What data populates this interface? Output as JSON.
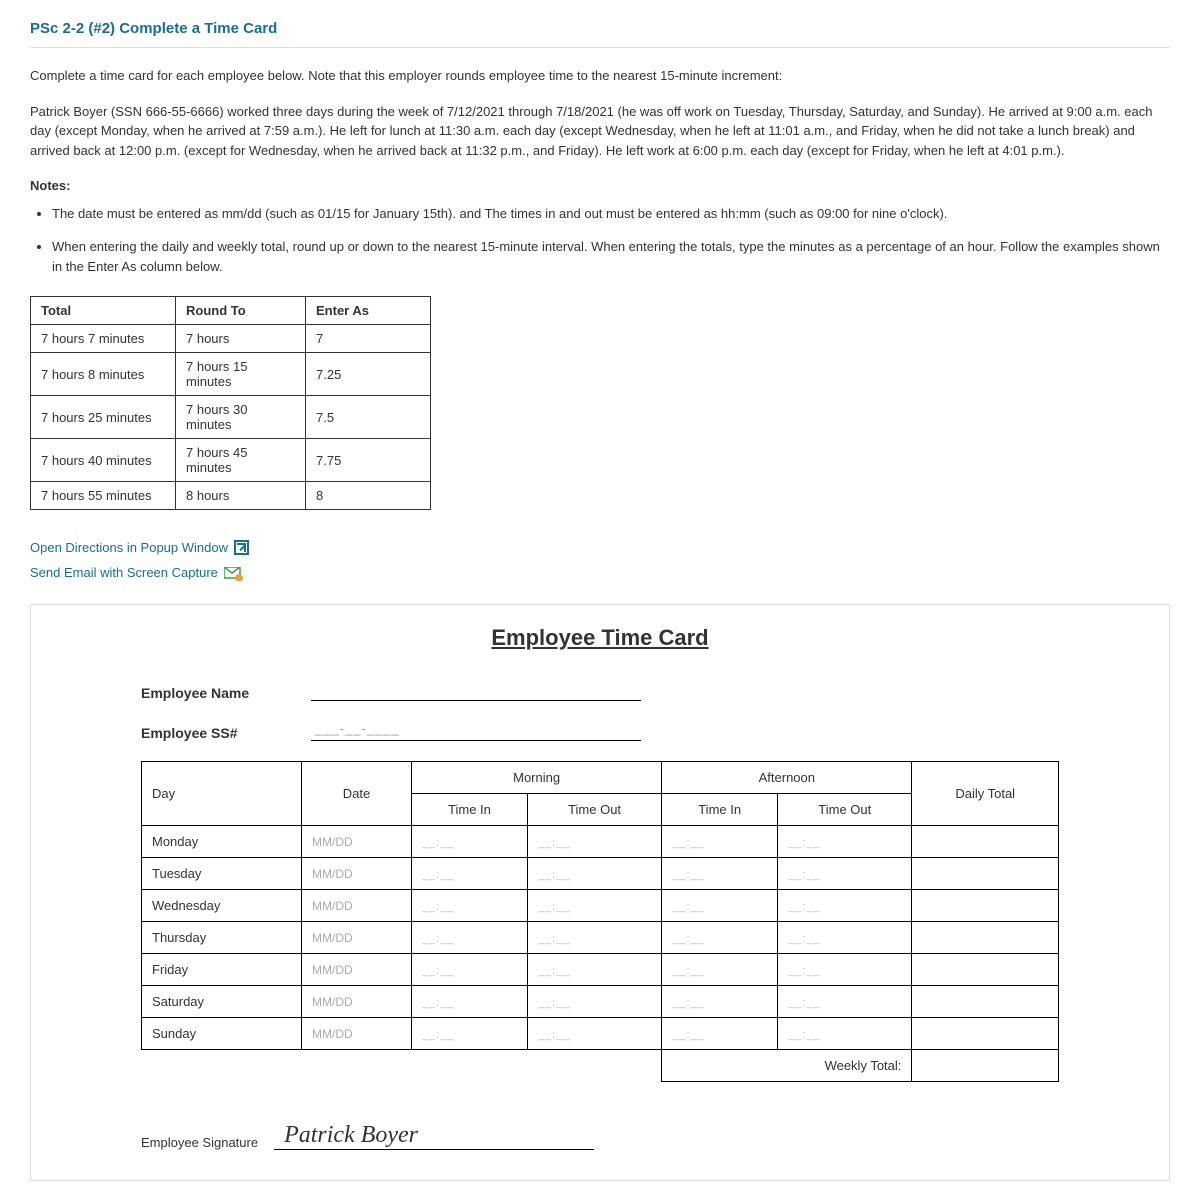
{
  "header": {
    "title": "PSc 2-2 (#2) Complete a Time Card"
  },
  "instructions": {
    "intro": "Complete a time card for each employee below. Note that this employer rounds employee time to the nearest 15-minute increment:",
    "body": "Patrick Boyer (SSN 666-55-6666) worked three days during the week of 7/12/2021 through 7/18/2021 (he was off work on Tuesday, Thursday, Saturday, and Sunday). He arrived at 9:00 a.m. each day (except Monday, when he arrived at 7:59 a.m.). He left for lunch at 11:30 a.m. each day (except Wednesday, when he left at 11:01 a.m., and Friday, when he did not take a lunch break) and arrived back at 12:00 p.m. (except for Wednesday, when he arrived back at 11:32 p.m., and Friday). He left work at 6:00 p.m. each day (except for Friday, when he left at 4:01 p.m.).",
    "notesLabel": "Notes:",
    "bullets": [
      "The date must be entered as mm/dd (such as 01/15 for January 15th). and The times in and out must be entered as hh:mm (such as 09:00 for nine o'clock).",
      "When entering the daily and weekly total, round up or down to the nearest 15-minute interval. When entering the totals, type the minutes as a percentage of an hour. Follow the examples shown in the Enter As column below."
    ]
  },
  "roundTable": {
    "headers": [
      "Total",
      "Round To",
      "Enter As"
    ],
    "rows": [
      [
        "7 hours 7 minutes",
        "7 hours",
        "7"
      ],
      [
        "7 hours 8 minutes",
        "7 hours 15 minutes",
        "7.25"
      ],
      [
        "7 hours 25 minutes",
        "7 hours 30 minutes",
        "7.5"
      ],
      [
        "7 hours 40 minutes",
        "7 hours 45 minutes",
        "7.75"
      ],
      [
        "7 hours 55 minutes",
        "8 hours",
        "8"
      ]
    ],
    "colWidths": [
      "145px",
      "130px",
      "125px"
    ]
  },
  "links": {
    "popup": "Open Directions in Popup Window",
    "email": "Send Email with Screen Capture"
  },
  "timecard": {
    "title": "Employee Time Card",
    "empNameLabel": "Employee Name",
    "empSSLabel": "Employee SS#",
    "ssPlaceholder": "___-__-____",
    "headers": {
      "day": "Day",
      "date": "Date",
      "morning": "Morning",
      "afternoon": "Afternoon",
      "timeIn": "Time In",
      "timeOut": "Time Out",
      "dailyTotal": "Daily Total",
      "weeklyTotal": "Weekly Total:"
    },
    "datePlaceholder": "MM/DD",
    "timePlaceholder": "__:__",
    "days": [
      "Monday",
      "Tuesday",
      "Wednesday",
      "Thursday",
      "Friday",
      "Saturday",
      "Sunday"
    ],
    "sigLabel": "Employee Signature",
    "signature": "Patrick Boyer"
  },
  "colors": {
    "link": "#1a6e8e",
    "border": "#000000",
    "placeholder": "#bbbbbb"
  }
}
